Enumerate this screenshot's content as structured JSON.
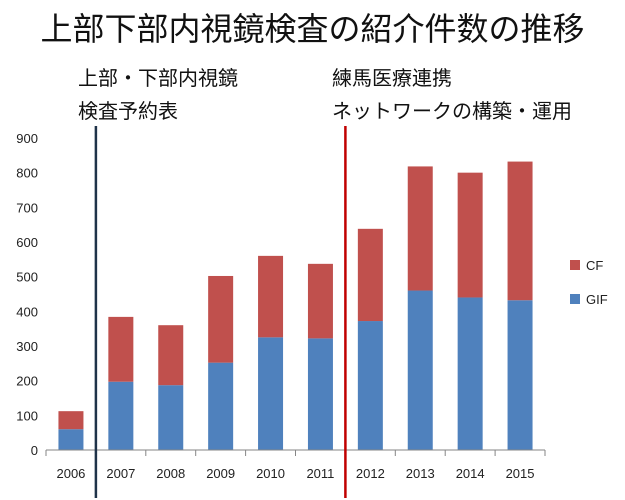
{
  "chart_data": {
    "type": "bar",
    "stacked": true,
    "title": "上部下部内視鏡検査の紹介件数の推移",
    "categories": [
      "2006",
      "2007",
      "2008",
      "2009",
      "2010",
      "2011",
      "2012",
      "2013",
      "2014",
      "2015"
    ],
    "series": [
      {
        "name": "GIF",
        "color": "#4f81bd",
        "values": [
          60,
          197,
          187,
          252,
          325,
          322,
          372,
          460,
          440,
          432
        ]
      },
      {
        "name": "CF",
        "color": "#c0504d",
        "values": [
          52,
          187,
          173,
          250,
          235,
          215,
          266,
          358,
          360,
          400
        ]
      }
    ],
    "ylim": [
      0,
      900
    ],
    "yticks": [
      0,
      100,
      200,
      300,
      400,
      500,
      600,
      700,
      800,
      900
    ],
    "grid": false,
    "legend": "right",
    "annotations": [
      {
        "lines": [
          "上部・下部内視鏡",
          "検査予約表"
        ],
        "after_category": "2006",
        "line_color": "#1f3349"
      },
      {
        "lines": [
          "練馬医療連携",
          "ネットワークの構築・運用"
        ],
        "after_category": "2011",
        "line_color": "#c00000"
      }
    ]
  }
}
